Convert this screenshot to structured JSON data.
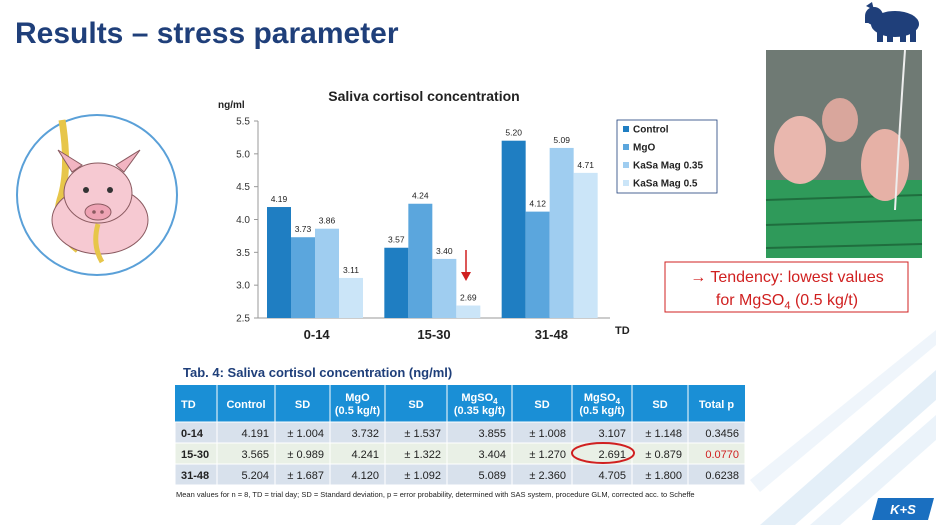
{
  "slide": {
    "title": "Results – stress parameter",
    "note": {
      "line1": "→ Tendency: lowest values",
      "line2a": "for MgSO",
      "sub": "4",
      "line2b": " (0.5 kg/t)"
    },
    "logo": "K+S"
  },
  "chart_data": {
    "type": "bar",
    "title": "Saliva cortisol concentration",
    "y_label": "ng/ml",
    "x_label": "TD",
    "categories": [
      "0-14",
      "15-30",
      "31-48"
    ],
    "series": [
      {
        "name": "Control",
        "color": "#1f7ec2",
        "values": [
          4.19,
          3.57,
          5.2
        ],
        "value_labels": [
          "4.19",
          "3.57",
          "5.20"
        ]
      },
      {
        "name": "MgO",
        "color": "#5ba6dd",
        "values": [
          3.73,
          4.24,
          4.12
        ],
        "value_labels": [
          "3.73",
          "4.24",
          "4.12"
        ]
      },
      {
        "name": "KaSa Mag 0.35",
        "color": "#9fcdf0",
        "values": [
          3.86,
          3.4,
          5.09
        ],
        "value_labels": [
          "3.86",
          "3.40",
          "5.09"
        ]
      },
      {
        "name": "KaSa Mag 0.5",
        "color": "#cbe5f8",
        "values": [
          3.11,
          2.69,
          4.71
        ],
        "value_labels": [
          "3.11",
          "2.69",
          "4.71"
        ]
      }
    ],
    "ylim": [
      2.5,
      5.5
    ],
    "yticks": [
      2.5,
      {
        "value": 3,
        "label": "3.0"
      },
      3.5,
      {
        "value": 4,
        "label": "4.0"
      },
      4.5,
      {
        "value": 5,
        "label": "5.0"
      },
      5.5
    ],
    "grid": false
  },
  "table": {
    "title": "Tab. 4: Saliva cortisol concentration (ng/ml)",
    "header": [
      {
        "l1": "TD"
      },
      {
        "l1": "Control"
      },
      {
        "l1": "SD"
      },
      {
        "l1": "MgO",
        "l2": "(0.5 kg/t)"
      },
      {
        "l1": "SD"
      },
      {
        "l1": "MgSO",
        "sub": "4",
        "l2": "(0.35 kg/t)"
      },
      {
        "l1": "SD"
      },
      {
        "l1": "MgSO",
        "sub": "4",
        "l2": "(0.5 kg/t)"
      },
      {
        "l1": "SD"
      },
      {
        "l1": "Total p"
      }
    ],
    "rows": [
      [
        "0-14",
        "4.191",
        "± 1.004",
        "3.732",
        "± 1.537",
        "3.855",
        "± 1.008",
        "3.107",
        "± 1.148",
        "0.3456"
      ],
      [
        "15-30",
        "3.565",
        "± 0.989",
        "4.241",
        "± 1.322",
        "3.404",
        "± 1.270",
        "2.691",
        "± 0.879",
        "0.0770"
      ],
      [
        "31-48",
        "5.204",
        "± 1.687",
        "4.120",
        "± 1.092",
        "5.089",
        "± 2.360",
        "4.705",
        "± 1.800",
        "0.6238"
      ]
    ],
    "footnote": "Mean values for n = 8, TD = trial day; SD = Standard deviation, p = error probability, determined with SAS system, procedure GLM, corrected acc. to Scheffe"
  }
}
